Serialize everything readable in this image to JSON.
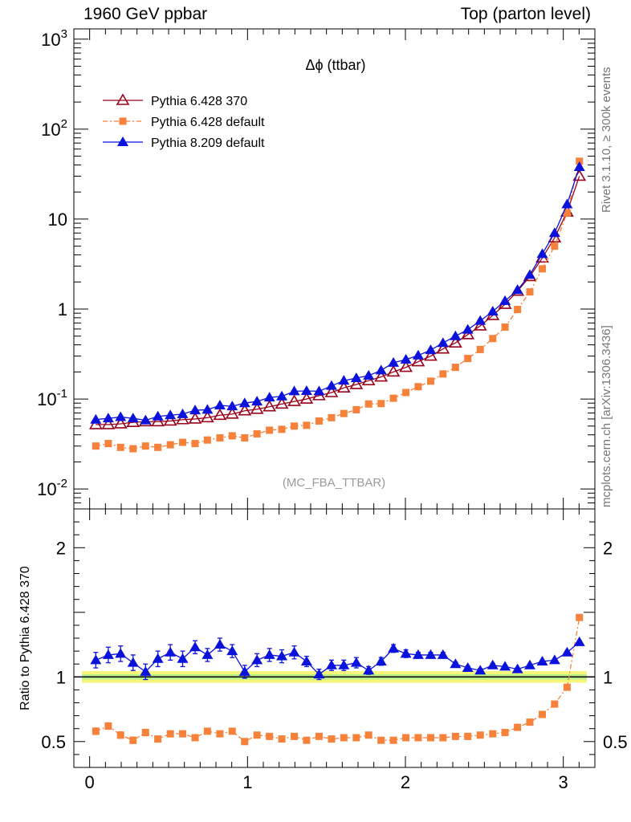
{
  "header": {
    "left": "1960 GeV ppbar",
    "right": "Top (parton level)"
  },
  "side_text": {
    "rivet": "Rivet 3.1.10, ≥ 300k events",
    "mcplots": "mcplots.cern.ch [arXiv:1306.3436]"
  },
  "colors": {
    "p6_370": "#99001a",
    "p6_default": "#f5813a",
    "p8_default": "#0a12db",
    "band_outer": "#f5f57a",
    "band_inner": "#b6ef8a"
  },
  "chart_data": [
    {
      "panel": "main",
      "type": "line",
      "title": "Δϕ (ttbar)",
      "annotation": "(MC_FBA_TTBAR)",
      "xlabel": "",
      "ylabel": "",
      "xlim": [
        -0.1,
        3.2
      ],
      "ylim": [
        0.006,
        1300
      ],
      "yscale": "log",
      "ytick_labels": [
        "10^-2",
        "10^-1",
        "1",
        "10",
        "10^2",
        "10^3"
      ],
      "legend_placement": "top-left",
      "x": [
        0.039,
        0.118,
        0.196,
        0.275,
        0.354,
        0.432,
        0.511,
        0.589,
        0.668,
        0.746,
        0.825,
        0.903,
        0.982,
        1.06,
        1.139,
        1.217,
        1.296,
        1.374,
        1.453,
        1.532,
        1.61,
        1.689,
        1.767,
        1.846,
        1.924,
        2.003,
        2.081,
        2.16,
        2.238,
        2.317,
        2.395,
        2.474,
        2.553,
        2.631,
        2.71,
        2.788,
        2.867,
        2.945,
        3.024,
        3.102
      ],
      "series": [
        {
          "name": "Pythia 6.428 370",
          "marker": "open-triangle",
          "values": [
            0.052,
            0.052,
            0.053,
            0.055,
            0.056,
            0.056,
            0.057,
            0.059,
            0.06,
            0.062,
            0.066,
            0.068,
            0.074,
            0.077,
            0.082,
            0.088,
            0.094,
            0.1,
            0.109,
            0.118,
            0.133,
            0.145,
            0.16,
            0.176,
            0.2,
            0.225,
            0.26,
            0.3,
            0.36,
            0.42,
            0.52,
            0.65,
            0.85,
            1.13,
            1.58,
            2.3,
            3.7,
            6.2,
            12.0,
            30.0
          ]
        },
        {
          "name": "Pythia 6.428 default",
          "marker": "filled-square",
          "values": [
            0.03,
            0.032,
            0.029,
            0.028,
            0.03,
            0.029,
            0.031,
            0.033,
            0.032,
            0.035,
            0.037,
            0.039,
            0.037,
            0.041,
            0.045,
            0.046,
            0.05,
            0.051,
            0.057,
            0.062,
            0.069,
            0.076,
            0.088,
            0.089,
            0.102,
            0.118,
            0.137,
            0.158,
            0.19,
            0.225,
            0.282,
            0.355,
            0.47,
            0.63,
            0.99,
            1.55,
            2.8,
            5.0,
            11.7,
            44.0
          ]
        },
        {
          "name": "Pythia 8.209 default",
          "marker": "filled-triangle",
          "values": [
            0.059,
            0.061,
            0.063,
            0.061,
            0.058,
            0.064,
            0.066,
            0.068,
            0.075,
            0.076,
            0.085,
            0.083,
            0.09,
            0.094,
            0.104,
            0.107,
            0.122,
            0.123,
            0.122,
            0.14,
            0.16,
            0.171,
            0.182,
            0.208,
            0.253,
            0.275,
            0.305,
            0.35,
            0.42,
            0.5,
            0.59,
            0.74,
            0.94,
            1.23,
            1.63,
            2.4,
            4.1,
            7.0,
            14.6,
            38.0
          ]
        }
      ]
    },
    {
      "panel": "ratio",
      "type": "line",
      "xlabel": "",
      "ylabel": "Ratio to Pythia 6.428 370",
      "xlim": [
        -0.1,
        3.2
      ],
      "ylim": [
        0.3,
        2.3
      ],
      "x_ticks": [
        0,
        1,
        2,
        3
      ],
      "y_ticks": [
        0.5,
        1,
        2
      ],
      "reference_line": 1,
      "reference_band": {
        "name": "Pythia 6.428 370",
        "inner_halfwidth": 0.02,
        "outer_halfwidth": 0.045
      },
      "x": [
        0.039,
        0.118,
        0.196,
        0.275,
        0.354,
        0.432,
        0.511,
        0.589,
        0.668,
        0.746,
        0.825,
        0.903,
        0.982,
        1.06,
        1.139,
        1.217,
        1.296,
        1.374,
        1.453,
        1.532,
        1.61,
        1.689,
        1.767,
        1.846,
        1.924,
        2.003,
        2.081,
        2.16,
        2.238,
        2.317,
        2.395,
        2.474,
        2.553,
        2.631,
        2.71,
        2.788,
        2.867,
        2.945,
        3.024,
        3.102
      ],
      "series": [
        {
          "name": "Pythia 6.428 default",
          "marker": "filled-square",
          "values": [
            0.58,
            0.62,
            0.55,
            0.51,
            0.57,
            0.52,
            0.56,
            0.56,
            0.53,
            0.58,
            0.56,
            0.58,
            0.5,
            0.55,
            0.54,
            0.52,
            0.54,
            0.51,
            0.54,
            0.52,
            0.53,
            0.53,
            0.55,
            0.51,
            0.51,
            0.53,
            0.53,
            0.53,
            0.53,
            0.54,
            0.54,
            0.55,
            0.56,
            0.57,
            0.61,
            0.65,
            0.71,
            0.79,
            0.92,
            1.46
          ],
          "errors": [
            0.025,
            0.025,
            0.025,
            0.025,
            0.025,
            0.02,
            0.02,
            0.02,
            0.02,
            0.02,
            0.02,
            0.02,
            0.02,
            0.015,
            0.015,
            0.015,
            0.015,
            0.015,
            0.012,
            0.012,
            0.012,
            0.012,
            0.01,
            0.01,
            0.01,
            0.01,
            0.01,
            0.01,
            0.01,
            0.008,
            0.008,
            0.008,
            0.008,
            0.008,
            0.008,
            0.008,
            0.008,
            0.008,
            0.008,
            0.008
          ]
        },
        {
          "name": "Pythia 8.209 default",
          "marker": "filled-triangle",
          "values": [
            1.13,
            1.17,
            1.18,
            1.11,
            1.04,
            1.14,
            1.19,
            1.14,
            1.23,
            1.17,
            1.25,
            1.2,
            1.04,
            1.13,
            1.17,
            1.16,
            1.19,
            1.12,
            1.02,
            1.09,
            1.09,
            1.11,
            1.05,
            1.12,
            1.22,
            1.18,
            1.17,
            1.17,
            1.17,
            1.1,
            1.07,
            1.05,
            1.09,
            1.08,
            1.06,
            1.09,
            1.12,
            1.13,
            1.19,
            1.27
          ],
          "errors": [
            0.06,
            0.06,
            0.06,
            0.06,
            0.06,
            0.06,
            0.06,
            0.06,
            0.05,
            0.05,
            0.05,
            0.05,
            0.05,
            0.05,
            0.05,
            0.05,
            0.05,
            0.04,
            0.04,
            0.04,
            0.04,
            0.04,
            0.03,
            0.03,
            0.03,
            0.03,
            0.02,
            0.02,
            0.02,
            0.015,
            0.015,
            0.015,
            0.015,
            0.01,
            0.01,
            0.01,
            0.01,
            0.01,
            0.01,
            0.01
          ]
        }
      ]
    }
  ]
}
